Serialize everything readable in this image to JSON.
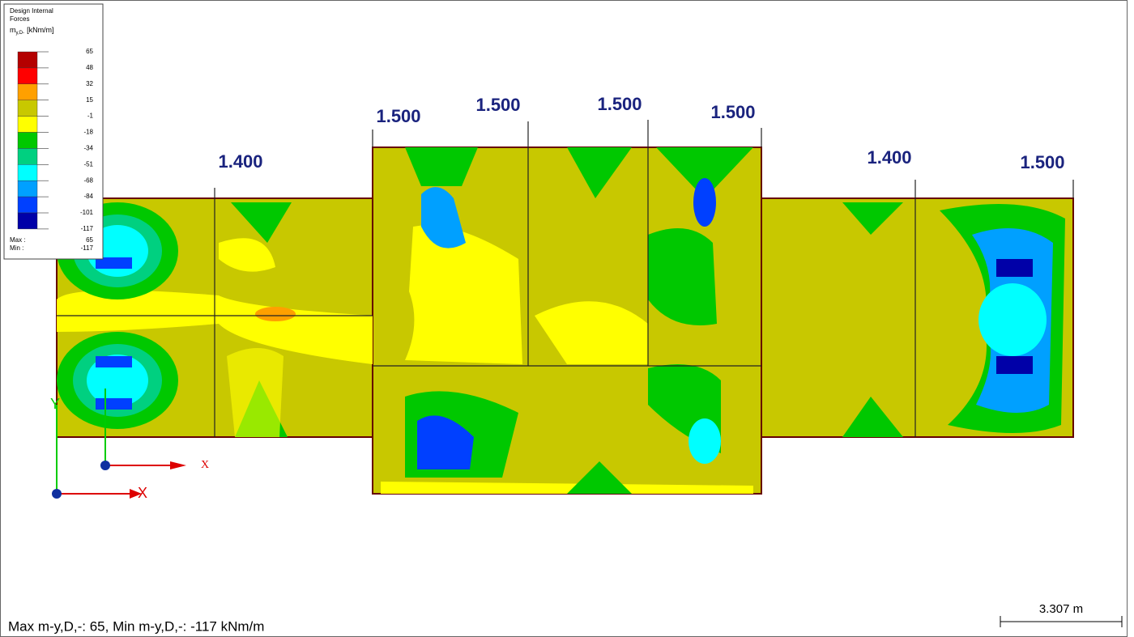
{
  "legend": {
    "title_lines": [
      "Design Internal",
      "Forces"
    ],
    "quantity": "m",
    "subscript": "y,D-",
    "unit": "[kNm/m]",
    "levels": [
      65,
      48,
      32,
      15,
      -1,
      -18,
      -34,
      -51,
      -68,
      -84,
      -101,
      -117
    ],
    "colors": [
      "#b40000",
      "#ff0000",
      "#ffa000",
      "#c8c800",
      "#ffff00",
      "#00c800",
      "#00d080",
      "#00ffff",
      "#00a0ff",
      "#0040ff",
      "#0000a8"
    ],
    "max_label": "Max :",
    "max_value": 65,
    "min_label": "Min :",
    "min_value": -117
  },
  "support_labels": [
    "1.400",
    "1.500",
    "1.500",
    "1.500",
    "1.500",
    "1.400",
    "1.500"
  ],
  "axes": {
    "x_label": "X",
    "y_label": "Y",
    "x_label_2": "X"
  },
  "footer": "Max m-y,D,-: 65, Min m-y,D,-: -117 kNm/m",
  "scale_bar": "3.307 m"
}
